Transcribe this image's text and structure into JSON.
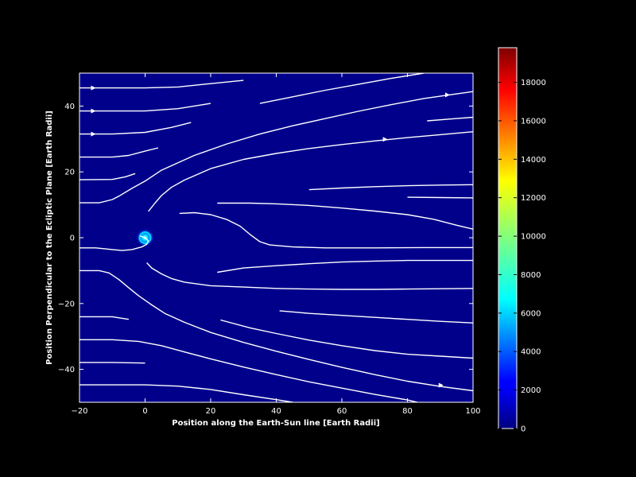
{
  "chart_data": {
    "type": "streamplot",
    "xlabel": "Position along the Earth-Sun line [Earth Radii]",
    "ylabel": "Position Perpendicular to the Ecliptic Plane [Earth Radii]",
    "xlim": [
      -20,
      100
    ],
    "ylim": [
      -50,
      50
    ],
    "xticks": [
      -20,
      0,
      20,
      40,
      60,
      80,
      100
    ],
    "yticks": [
      -40,
      -20,
      0,
      20,
      40
    ],
    "background_color": "#00008b",
    "streamline_color": "#ffffff",
    "colormap": "jet",
    "colorbar": {
      "min": 0,
      "max": 19800,
      "ticks": [
        0,
        2000,
        4000,
        6000,
        8000,
        10000,
        12000,
        14000,
        16000,
        18000
      ]
    },
    "streamlines": [
      [
        [
          -20,
          45.5
        ],
        [
          0,
          45.5
        ],
        [
          10,
          45.8
        ],
        [
          20,
          46.8
        ],
        [
          30,
          47.8
        ]
      ],
      [
        [
          -20,
          38.5
        ],
        [
          0,
          38.5
        ],
        [
          10,
          39.2
        ],
        [
          20,
          40.8
        ]
      ],
      [
        [
          35,
          40.8
        ],
        [
          45,
          42.8
        ],
        [
          55,
          44.8
        ],
        [
          65,
          46.6
        ],
        [
          75,
          48.4
        ],
        [
          85,
          50
        ]
      ],
      [
        [
          -20,
          31.5
        ],
        [
          -10,
          31.5
        ],
        [
          0,
          32
        ],
        [
          8,
          33.5
        ],
        [
          14,
          35
        ]
      ],
      [
        [
          -20,
          24.5
        ],
        [
          -10,
          24.5
        ],
        [
          -5,
          25
        ],
        [
          0,
          26.3
        ],
        [
          4,
          27.3
        ]
      ],
      [
        [
          -20,
          17.6
        ],
        [
          -10,
          17.7
        ],
        [
          -6,
          18.5
        ],
        [
          -3,
          19.5
        ]
      ],
      [
        [
          -20,
          10.6
        ],
        [
          -14,
          10.6
        ],
        [
          -10,
          11.6
        ],
        [
          -8,
          12.6
        ],
        [
          -4,
          15
        ],
        [
          0,
          17.2
        ],
        [
          5,
          20.5
        ],
        [
          15,
          25
        ],
        [
          25,
          28.5
        ],
        [
          35,
          31.5
        ],
        [
          45,
          34
        ],
        [
          55,
          36.2
        ],
        [
          65,
          38.4
        ],
        [
          75,
          40.4
        ],
        [
          85,
          42.3
        ],
        [
          95,
          43.7
        ],
        [
          100,
          44.4
        ]
      ],
      [
        [
          1,
          8
        ],
        [
          3,
          10.5
        ],
        [
          5,
          12.8
        ],
        [
          8,
          15.3
        ],
        [
          12,
          17.5
        ],
        [
          20,
          21
        ],
        [
          30,
          23.8
        ],
        [
          40,
          25.6
        ],
        [
          50,
          27.1
        ],
        [
          60,
          28.3
        ],
        [
          70,
          29.4
        ],
        [
          80,
          30.4
        ],
        [
          90,
          31.3
        ],
        [
          100,
          32.2
        ]
      ],
      [
        [
          86,
          35.5
        ],
        [
          95,
          36.2
        ],
        [
          100,
          36.6
        ]
      ],
      [
        [
          50,
          14.6
        ],
        [
          60,
          15.1
        ],
        [
          70,
          15.5
        ],
        [
          80,
          15.8
        ],
        [
          90,
          16
        ],
        [
          100,
          16.1
        ]
      ],
      [
        [
          80,
          12.3
        ],
        [
          90,
          12.2
        ],
        [
          100,
          12.1
        ]
      ],
      [
        [
          22,
          10.5
        ],
        [
          32,
          10.5
        ],
        [
          40,
          10.3
        ],
        [
          50,
          9.8
        ],
        [
          60,
          9
        ],
        [
          70,
          8.1
        ],
        [
          80,
          7
        ],
        [
          88,
          5.6
        ],
        [
          95,
          3.8
        ],
        [
          100,
          2.6
        ]
      ],
      [
        [
          10.5,
          7.4
        ],
        [
          15,
          7.6
        ],
        [
          20,
          7
        ],
        [
          25,
          5.5
        ],
        [
          29,
          3.5
        ],
        [
          32,
          1
        ],
        [
          35,
          -1.2
        ],
        [
          38,
          -2.2
        ],
        [
          45,
          -2.8
        ],
        [
          55,
          -3.1
        ],
        [
          70,
          -3.1
        ],
        [
          85,
          -3
        ],
        [
          100,
          -3
        ]
      ],
      [
        [
          -20,
          -3.1
        ],
        [
          -15,
          -3.1
        ],
        [
          -10,
          -3.6
        ],
        [
          -7,
          -3.9
        ],
        [
          -4,
          -3.6
        ],
        [
          -1,
          -2.8
        ],
        [
          0.5,
          -2
        ],
        [
          1,
          -1
        ],
        [
          0,
          0
        ],
        [
          -1.5,
          0.5
        ]
      ],
      [
        [
          0.5,
          -7.6
        ],
        [
          2,
          -9.2
        ],
        [
          5,
          -11
        ],
        [
          8,
          -12.4
        ],
        [
          12,
          -13.5
        ],
        [
          20,
          -14.6
        ],
        [
          30,
          -15
        ],
        [
          40,
          -15.4
        ],
        [
          50,
          -15.6
        ],
        [
          60,
          -15.7
        ],
        [
          70,
          -15.7
        ],
        [
          80,
          -15.6
        ],
        [
          90,
          -15.5
        ],
        [
          100,
          -15.4
        ]
      ],
      [
        [
          22,
          -10.5
        ],
        [
          30,
          -9.2
        ],
        [
          40,
          -8.5
        ],
        [
          50,
          -7.9
        ],
        [
          60,
          -7.4
        ],
        [
          70,
          -7.1
        ],
        [
          80,
          -6.9
        ],
        [
          90,
          -6.9
        ],
        [
          100,
          -6.9
        ]
      ],
      [
        [
          -20,
          -10
        ],
        [
          -14,
          -10
        ],
        [
          -11,
          -10.7
        ],
        [
          -8,
          -12.7
        ],
        [
          -5,
          -15.2
        ],
        [
          -2,
          -17.6
        ],
        [
          2,
          -20.4
        ],
        [
          6,
          -23
        ],
        [
          12,
          -25.7
        ],
        [
          20,
          -28.8
        ],
        [
          30,
          -31.8
        ],
        [
          40,
          -34.5
        ],
        [
          50,
          -37
        ],
        [
          60,
          -39.4
        ],
        [
          70,
          -41.6
        ],
        [
          80,
          -43.6
        ],
        [
          90,
          -45.2
        ],
        [
          100,
          -46.5
        ]
      ],
      [
        [
          -20,
          -24
        ],
        [
          -10,
          -24
        ],
        [
          -5,
          -24.8
        ]
      ],
      [
        [
          41,
          -22.2
        ],
        [
          50,
          -23
        ],
        [
          60,
          -23.6
        ],
        [
          70,
          -24.2
        ],
        [
          80,
          -24.8
        ],
        [
          90,
          -25.4
        ],
        [
          100,
          -25.9
        ]
      ],
      [
        [
          23,
          -25
        ],
        [
          32,
          -27.4
        ],
        [
          40,
          -29.1
        ],
        [
          50,
          -31.1
        ],
        [
          60,
          -32.8
        ],
        [
          70,
          -34.3
        ],
        [
          80,
          -35.4
        ],
        [
          90,
          -36
        ],
        [
          100,
          -36.6
        ]
      ],
      [
        [
          -20,
          -31
        ],
        [
          -10,
          -31
        ],
        [
          -2,
          -31.5
        ],
        [
          5,
          -32.8
        ],
        [
          12,
          -34.7
        ],
        [
          20,
          -36.8
        ],
        [
          30,
          -39.3
        ],
        [
          40,
          -41.6
        ],
        [
          50,
          -43.8
        ],
        [
          60,
          -45.7
        ],
        [
          70,
          -47.6
        ],
        [
          80,
          -49.3
        ],
        [
          83,
          -50
        ]
      ],
      [
        [
          -20,
          -37.9
        ],
        [
          -10,
          -37.9
        ],
        [
          0,
          -38.1
        ]
      ],
      [
        [
          -20,
          -44.7
        ],
        [
          0,
          -44.7
        ],
        [
          10,
          -45.1
        ],
        [
          20,
          -46.1
        ],
        [
          30,
          -47.7
        ],
        [
          40,
          -49.2
        ],
        [
          45,
          -50
        ]
      ]
    ],
    "arrows": [
      {
        "x": -16,
        "y": 45.5,
        "dir": "right"
      },
      {
        "x": -16,
        "y": 38.5,
        "dir": "right"
      },
      {
        "x": -16,
        "y": 31.5,
        "dir": "right"
      },
      {
        "x": 92,
        "y": 43.4,
        "dir": "right"
      },
      {
        "x": 73,
        "y": 29.9,
        "dir": "right"
      },
      {
        "x": 90,
        "y": -44.8,
        "dir": "right"
      }
    ],
    "hotspot": {
      "x": 0,
      "y": 0
    }
  }
}
